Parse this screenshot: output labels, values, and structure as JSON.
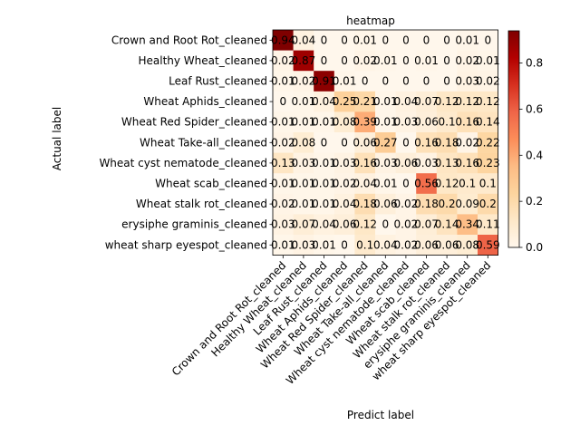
{
  "chart_data": {
    "type": "heatmap",
    "title": "heatmap",
    "xlabel": "Predict label",
    "ylabel": "Actual label",
    "x_categories": [
      "Crown and Root Rot_cleaned",
      "Healthy Wheat_cleaned",
      "Leaf Rust_cleaned",
      "Wheat Aphids_cleaned",
      "Wheat Red Spider_cleaned",
      "Wheat Take-all_cleaned",
      "Wheat cyst nematode_cleaned",
      "Wheat scab_cleaned",
      "Wheat stalk rot_cleaned",
      "erysiphe graminis_cleaned",
      "wheat sharp eyespot_cleaned"
    ],
    "y_categories": [
      "Crown and Root Rot_cleaned",
      "Healthy Wheat_cleaned",
      "Leaf Rust_cleaned",
      "Wheat Aphids_cleaned",
      "Wheat Red Spider_cleaned",
      "Wheat Take-all_cleaned",
      "Wheat cyst nematode_cleaned",
      "Wheat scab_cleaned",
      "Wheat stalk rot_cleaned",
      "erysiphe graminis_cleaned",
      "wheat sharp eyespot_cleaned"
    ],
    "matrix": [
      [
        0.94,
        0.04,
        0.0,
        0.0,
        0.01,
        0.0,
        0.0,
        0.0,
        0.0,
        0.01,
        0.0
      ],
      [
        0.02,
        0.87,
        0.0,
        0.0,
        0.02,
        0.01,
        0.0,
        0.01,
        0.0,
        0.02,
        0.01
      ],
      [
        0.01,
        0.02,
        0.91,
        0.01,
        0.0,
        0.0,
        0.0,
        0.0,
        0.0,
        0.03,
        0.02
      ],
      [
        0.0,
        0.01,
        0.04,
        0.25,
        0.21,
        0.01,
        0.04,
        0.07,
        0.12,
        0.12,
        0.12
      ],
      [
        0.01,
        0.01,
        0.01,
        0.08,
        0.39,
        0.01,
        0.03,
        0.06,
        0.1,
        0.16,
        0.14
      ],
      [
        0.02,
        0.08,
        0.0,
        0.0,
        0.06,
        0.27,
        0.0,
        0.16,
        0.18,
        0.02,
        0.22
      ],
      [
        0.13,
        0.03,
        0.01,
        0.03,
        0.16,
        0.03,
        0.06,
        0.03,
        0.13,
        0.16,
        0.23
      ],
      [
        0.01,
        0.01,
        0.01,
        0.02,
        0.04,
        0.01,
        0.0,
        0.56,
        0.12,
        0.1,
        0.1
      ],
      [
        0.02,
        0.01,
        0.01,
        0.04,
        0.18,
        0.06,
        0.02,
        0.18,
        0.2,
        0.09,
        0.2
      ],
      [
        0.03,
        0.07,
        0.04,
        0.06,
        0.12,
        0.0,
        0.02,
        0.07,
        0.14,
        0.34,
        0.11
      ],
      [
        0.01,
        0.03,
        0.01,
        0.0,
        0.1,
        0.04,
        0.02,
        0.06,
        0.06,
        0.08,
        0.59
      ]
    ],
    "colormap": "OrRd",
    "colorbar": {
      "vmin": 0.0,
      "vmax": 0.94,
      "ticks": [
        "0.0",
        "0.2",
        "0.4",
        "0.6",
        "0.8"
      ]
    }
  }
}
